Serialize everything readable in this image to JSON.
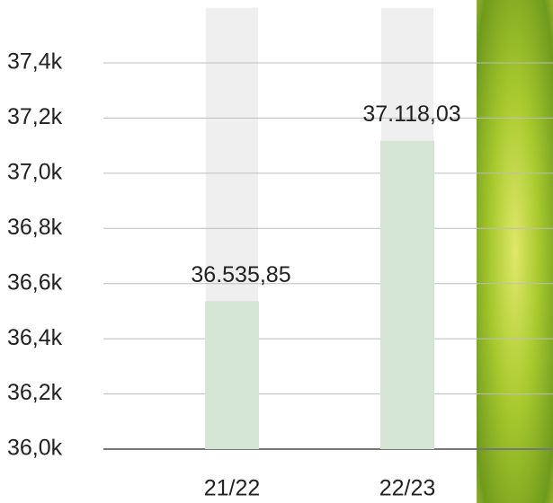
{
  "chart_data": {
    "type": "bar",
    "categories": [
      "21/22",
      "22/23"
    ],
    "values": [
      36535.85,
      37118.03
    ],
    "value_labels": [
      "36.535,85",
      "37.118,03"
    ],
    "color": "#d5e5d5",
    "ylim": [
      36000,
      37600
    ],
    "yticks": [
      {
        "value": 36000,
        "label": "36,0k"
      },
      {
        "value": 36200,
        "label": "36,2k"
      },
      {
        "value": 36400,
        "label": "36,4k"
      },
      {
        "value": 36600,
        "label": "36,6k"
      },
      {
        "value": 36800,
        "label": "36,8k"
      },
      {
        "value": 37000,
        "label": "37,0k"
      },
      {
        "value": 37200,
        "label": "37,2k"
      },
      {
        "value": 37400,
        "label": "37,4k"
      }
    ],
    "grid": true
  }
}
